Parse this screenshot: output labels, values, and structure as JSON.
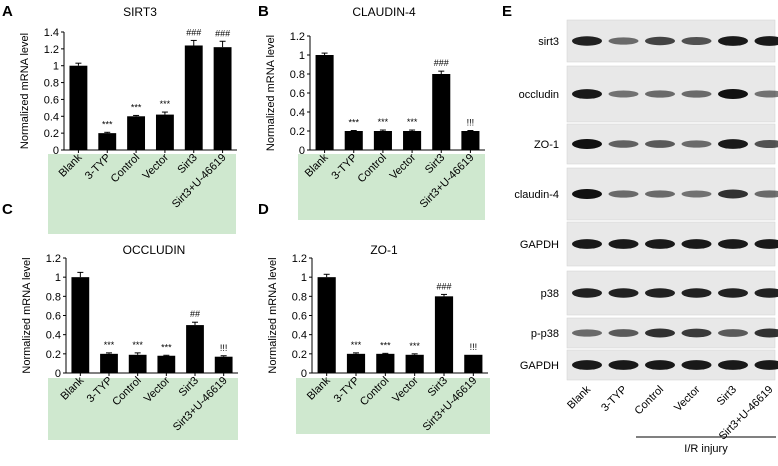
{
  "chart_data": [
    {
      "panel": "A",
      "type": "bar",
      "title": "SIRT3",
      "ylabel": "Normalized mRNA level",
      "xlabel": "",
      "ylim": [
        0,
        1.4
      ],
      "yticks": [
        "0",
        "0.2",
        "0.4",
        "0.6",
        "0.8",
        "1",
        "1.2",
        "1.4"
      ],
      "categories": [
        "Blank",
        "3-TYP",
        "Control",
        "Vector",
        "Sirt3",
        "Sirt3+U-46619"
      ],
      "values": [
        1.0,
        0.2,
        0.4,
        0.42,
        1.24,
        1.22
      ],
      "errors": [
        0.03,
        0.01,
        0.01,
        0.03,
        0.06,
        0.07
      ],
      "significance": [
        "",
        "***",
        "***",
        "***",
        "###",
        "###"
      ]
    },
    {
      "panel": "B",
      "type": "bar",
      "title": "CLAUDIN-4",
      "ylabel": "Normalized mRNA level",
      "xlabel": "",
      "ylim": [
        0,
        1.2
      ],
      "yticks": [
        "0",
        "0.2",
        "0.4",
        "0.6",
        "0.8",
        "1",
        "1.2"
      ],
      "categories": [
        "Blank",
        "3-TYP",
        "Control",
        "Vector",
        "Sirt3",
        "Sirt3+U-46619"
      ],
      "values": [
        1.0,
        0.2,
        0.2,
        0.2,
        0.8,
        0.2
      ],
      "errors": [
        0.02,
        0.005,
        0.01,
        0.01,
        0.03,
        0.005
      ],
      "significance": [
        "",
        "***",
        "***",
        "***",
        "###",
        "!!!"
      ]
    },
    {
      "panel": "C",
      "type": "bar",
      "title": "OCCLUDIN",
      "ylabel": "Normalized mRNA level",
      "xlabel": "",
      "ylim": [
        0,
        1.2
      ],
      "yticks": [
        "0",
        "0.2",
        "0.4",
        "0.6",
        "0.8",
        "1",
        "1.2"
      ],
      "categories": [
        "Blank",
        "3-TYP",
        "Control",
        "Vector",
        "Sirt3",
        "Sirt3+U-46619"
      ],
      "values": [
        1.0,
        0.2,
        0.19,
        0.18,
        0.5,
        0.17
      ],
      "errors": [
        0.05,
        0.01,
        0.02,
        0.005,
        0.03,
        0.01
      ],
      "significance": [
        "",
        "***",
        "***",
        "***",
        "##",
        "!!!"
      ]
    },
    {
      "panel": "D",
      "type": "bar",
      "title": "ZO-1",
      "ylabel": "Normalized mRNA level",
      "xlabel": "",
      "ylim": [
        0,
        1.2
      ],
      "yticks": [
        "0",
        "0.2",
        "0.4",
        "0.6",
        "0.8",
        "1",
        "1.2"
      ],
      "categories": [
        "Blank",
        "3-TYP",
        "Control",
        "Vector",
        "Sirt3",
        "Sirt3+U-46619"
      ],
      "values": [
        1.0,
        0.2,
        0.2,
        0.19,
        0.8,
        0.19
      ],
      "errors": [
        0.03,
        0.01,
        0.005,
        0.01,
        0.02,
        0.0
      ],
      "significance": [
        "",
        "***",
        "***",
        "***",
        "###",
        "!!!"
      ]
    }
  ],
  "western_blot": {
    "panel": "E",
    "rows": [
      {
        "label": "sirt3",
        "intensity": [
          0.9,
          0.45,
          0.7,
          0.6,
          0.95,
          0.95
        ]
      },
      {
        "label": "occludin",
        "intensity": [
          0.95,
          0.4,
          0.45,
          0.45,
          1.0,
          0.4
        ]
      },
      {
        "label": "ZO-1",
        "intensity": [
          1.0,
          0.5,
          0.55,
          0.45,
          0.95,
          0.6
        ]
      },
      {
        "label": "claudin-4",
        "intensity": [
          1.0,
          0.45,
          0.45,
          0.4,
          0.8,
          0.45
        ]
      },
      {
        "label": "GAPDH",
        "intensity": [
          0.95,
          0.95,
          0.95,
          0.95,
          0.95,
          0.95
        ]
      },
      {
        "label": "p38",
        "intensity": [
          0.9,
          0.9,
          0.9,
          0.9,
          0.9,
          0.9
        ]
      },
      {
        "label": "p-p38",
        "intensity": [
          0.45,
          0.55,
          0.8,
          0.75,
          0.55,
          0.8
        ]
      },
      {
        "label": "GAPDH",
        "intensity": [
          0.95,
          0.95,
          0.95,
          0.95,
          0.95,
          0.95
        ]
      }
    ],
    "lanes": [
      "Blank",
      "3-TYP",
      "Control",
      "Vector",
      "Sirt3",
      "Sirt3+U-46619"
    ],
    "group_label": "I/R injury"
  },
  "colors": {
    "bar": "#000000",
    "label_highlight": "#cfe8cf",
    "blot_background": "#e8e8e8",
    "band": "#111111"
  }
}
